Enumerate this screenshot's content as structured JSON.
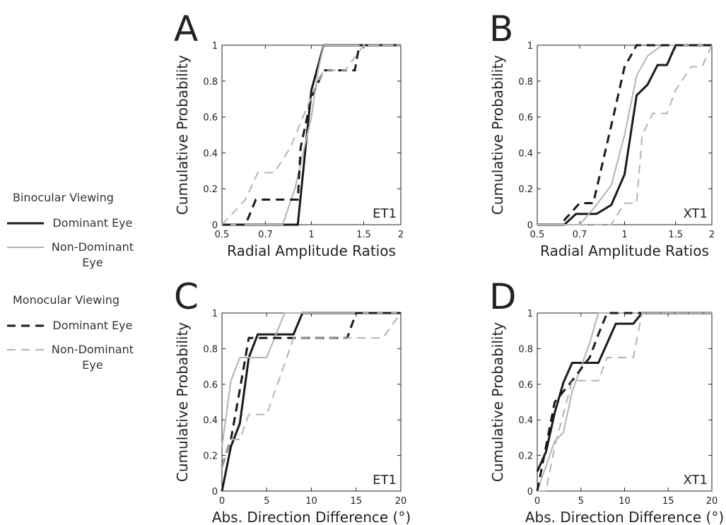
{
  "legend": {
    "groups": [
      "Binocular Viewing",
      "Monocular Viewing"
    ]
  },
  "chart_data": [
    {
      "type": "line",
      "label": "A",
      "annotation": "ET1",
      "xlabel": "Radial Amplitude Ratios",
      "ylabel": "Cumulative Probability",
      "xscale": "log",
      "xlim": [
        0.5,
        2
      ],
      "xticks": [
        0.5,
        0.7,
        1,
        1.5,
        2
      ],
      "ylim": [
        0,
        1
      ],
      "yticks": [
        0,
        0.2,
        0.4,
        0.6,
        0.8,
        1
      ],
      "series": [
        {
          "name": "Dominant Eye",
          "color": "#1a1a1a",
          "dash": "solid",
          "x": [
            0.5,
            0.9,
            1.0,
            1.1,
            2
          ],
          "values": [
            0,
            0,
            0.75,
            1,
            1
          ]
        },
        {
          "name": "Non-Dominant Eye",
          "color": "#b3b3b3",
          "dash": "solid",
          "x": [
            0.5,
            0.8,
            0.88,
            1.0,
            1.05,
            1.1,
            2
          ],
          "values": [
            0,
            0,
            0.2,
            0.6,
            0.85,
            1,
            1
          ]
        },
        {
          "name": "Dominant Eye",
          "color": "#1a1a1a",
          "dash": "dashed",
          "x": [
            0.5,
            0.6,
            0.65,
            0.9,
            0.92,
            1.0,
            1.1,
            1.4,
            1.45,
            2
          ],
          "values": [
            0,
            0,
            0.14,
            0.14,
            0.43,
            0.71,
            0.86,
            0.86,
            1,
            1
          ]
        },
        {
          "name": "Non-Dominant Eye",
          "color": "#b3b3b3",
          "dash": "dashed",
          "x": [
            0.5,
            0.6,
            0.66,
            0.75,
            0.85,
            0.92,
            1.0,
            1.1,
            1.3,
            1.5,
            2
          ],
          "values": [
            0,
            0.14,
            0.29,
            0.29,
            0.43,
            0.57,
            0.71,
            0.86,
            0.86,
            1,
            1
          ]
        }
      ]
    },
    {
      "type": "line",
      "label": "B",
      "annotation": "XT1",
      "xlabel": "Radial Amplitude Ratios",
      "ylabel": "Cumulative Probability",
      "xscale": "log",
      "xlim": [
        0.5,
        2
      ],
      "xticks": [
        0.5,
        0.7,
        1,
        1.5,
        2
      ],
      "ylim": [
        0,
        1
      ],
      "yticks": [
        0,
        0.2,
        0.4,
        0.6,
        0.8,
        1
      ],
      "series": [
        {
          "name": "Dominant Eye",
          "color": "#1a1a1a",
          "dash": "solid",
          "x": [
            0.5,
            0.62,
            0.68,
            0.8,
            0.9,
            1.0,
            1.1,
            1.2,
            1.3,
            1.4,
            1.5,
            2
          ],
          "values": [
            0,
            0,
            0.06,
            0.06,
            0.11,
            0.28,
            0.72,
            0.78,
            0.89,
            0.89,
            1,
            1
          ]
        },
        {
          "name": "Non-Dominant Eye",
          "color": "#b3b3b3",
          "dash": "solid",
          "x": [
            0.5,
            0.7,
            0.8,
            0.9,
            1.0,
            1.1,
            1.2,
            1.35,
            2
          ],
          "values": [
            0,
            0,
            0.11,
            0.22,
            0.5,
            0.83,
            0.94,
            1,
            1
          ]
        },
        {
          "name": "Dominant Eye",
          "color": "#1a1a1a",
          "dash": "dashed",
          "x": [
            0.5,
            0.6,
            0.7,
            0.78,
            0.85,
            0.92,
            1.0,
            1.05,
            1.1,
            2
          ],
          "values": [
            0,
            0,
            0.12,
            0.12,
            0.38,
            0.62,
            0.88,
            0.94,
            1,
            1
          ]
        },
        {
          "name": "Non-Dominant Eye",
          "color": "#b3b3b3",
          "dash": "dashed",
          "x": [
            0.5,
            0.9,
            1.0,
            1.1,
            1.15,
            1.25,
            1.4,
            1.5,
            1.7,
            1.85,
            2
          ],
          "values": [
            0,
            0,
            0.12,
            0.12,
            0.5,
            0.62,
            0.62,
            0.75,
            0.88,
            0.88,
            1
          ]
        }
      ]
    },
    {
      "type": "line",
      "label": "C",
      "annotation": "ET1",
      "xlabel": "Abs. Direction Difference (°)",
      "ylabel": "Cumulative Probability",
      "xlim": [
        0,
        20
      ],
      "xticks": [
        0,
        5,
        10,
        15,
        20
      ],
      "ylim": [
        0,
        1
      ],
      "yticks": [
        0,
        0.2,
        0.4,
        0.6,
        0.8,
        1
      ],
      "series": [
        {
          "name": "Dominant Eye",
          "color": "#1a1a1a",
          "dash": "solid",
          "x": [
            0,
            1,
            2,
            3,
            4,
            8,
            9,
            20
          ],
          "values": [
            0,
            0.25,
            0.38,
            0.75,
            0.88,
            0.88,
            1,
            1
          ]
        },
        {
          "name": "Non-Dominant Eye",
          "color": "#b3b3b3",
          "dash": "solid",
          "x": [
            0,
            1,
            2,
            5,
            7,
            20
          ],
          "values": [
            0.25,
            0.62,
            0.75,
            0.75,
            1,
            1
          ]
        },
        {
          "name": "Dominant Eye",
          "color": "#1a1a1a",
          "dash": "dashed",
          "x": [
            0,
            1,
            2,
            3,
            14,
            15,
            20
          ],
          "values": [
            0.14,
            0.29,
            0.57,
            0.86,
            0.86,
            1,
            1
          ]
        },
        {
          "name": "Non-Dominant Eye",
          "color": "#b3b3b3",
          "dash": "dashed",
          "x": [
            0,
            1,
            2,
            3,
            5,
            6,
            8,
            18,
            20
          ],
          "values": [
            0.14,
            0.29,
            0.29,
            0.43,
            0.43,
            0.57,
            0.86,
            0.86,
            1
          ]
        }
      ]
    },
    {
      "type": "line",
      "label": "D",
      "annotation": "XT1",
      "xlabel": "Abs. Direction Difference (°)",
      "ylabel": "Cumulative Probability",
      "xlim": [
        0,
        20
      ],
      "xticks": [
        0,
        5,
        10,
        15,
        20
      ],
      "ylim": [
        0,
        1
      ],
      "yticks": [
        0,
        0.2,
        0.4,
        0.6,
        0.8,
        1
      ],
      "series": [
        {
          "name": "Dominant Eye",
          "color": "#1a1a1a",
          "dash": "solid",
          "x": [
            0,
            1,
            2,
            3,
            4,
            7,
            9,
            11,
            12,
            20
          ],
          "values": [
            0.11,
            0.22,
            0.44,
            0.61,
            0.72,
            0.72,
            0.94,
            0.94,
            1,
            1
          ]
        },
        {
          "name": "Non-Dominant Eye",
          "color": "#b3b3b3",
          "dash": "solid",
          "x": [
            0,
            2,
            3,
            4,
            6,
            7,
            20
          ],
          "values": [
            0,
            0.28,
            0.33,
            0.56,
            0.83,
            1,
            1
          ]
        },
        {
          "name": "Dominant Eye",
          "color": "#1a1a1a",
          "dash": "dashed",
          "x": [
            0,
            1,
            2,
            4,
            6,
            7,
            8,
            20
          ],
          "values": [
            0,
            0.25,
            0.5,
            0.62,
            0.75,
            0.88,
            1,
            1
          ]
        },
        {
          "name": "Non-Dominant Eye",
          "color": "#b3b3b3",
          "dash": "dashed",
          "x": [
            0,
            1,
            2,
            4,
            5,
            7,
            8,
            11,
            12,
            20
          ],
          "values": [
            0,
            0,
            0.25,
            0.62,
            0.62,
            0.62,
            0.75,
            0.75,
            1,
            1
          ]
        }
      ]
    }
  ]
}
